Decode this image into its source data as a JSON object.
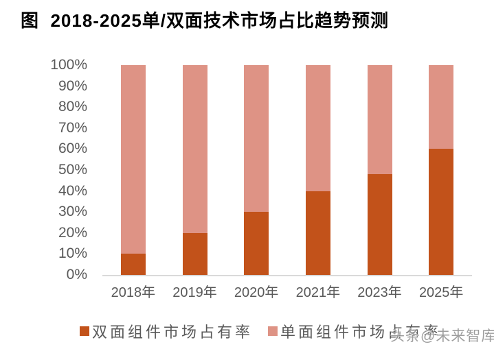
{
  "title": "图  2018-2025单/双面技术市场占比趋势预测",
  "watermark": "头条@未来智库",
  "colors": {
    "series_dark": "#C2521A",
    "series_light": "#DE9385",
    "axis_text": "#595959",
    "axis_line": "#D9D9D9",
    "title_text": "#000000",
    "watermark_text": "#828282"
  },
  "chart_data": {
    "type": "bar",
    "variant": "stacked-100-percent",
    "title": "图 2018-2025单/双面技术市场占比趋势预测",
    "categories": [
      "2018年",
      "2019年",
      "2020年",
      "2021年",
      "2023年",
      "2025年"
    ],
    "series": [
      {
        "name": "双面组件市场占有率",
        "color": "#C2521A",
        "values": [
          10,
          20,
          30,
          40,
          48,
          60
        ]
      },
      {
        "name": "单面组件市场占有率",
        "color": "#DE9385",
        "values": [
          90,
          80,
          70,
          60,
          52,
          40
        ]
      }
    ],
    "xlabel": "",
    "ylabel": "",
    "ylim": [
      0,
      100
    ],
    "yticks": [
      0,
      10,
      20,
      30,
      40,
      50,
      60,
      70,
      80,
      90,
      100
    ],
    "ytick_suffix": "%",
    "grid": false,
    "legend_position": "bottom"
  }
}
